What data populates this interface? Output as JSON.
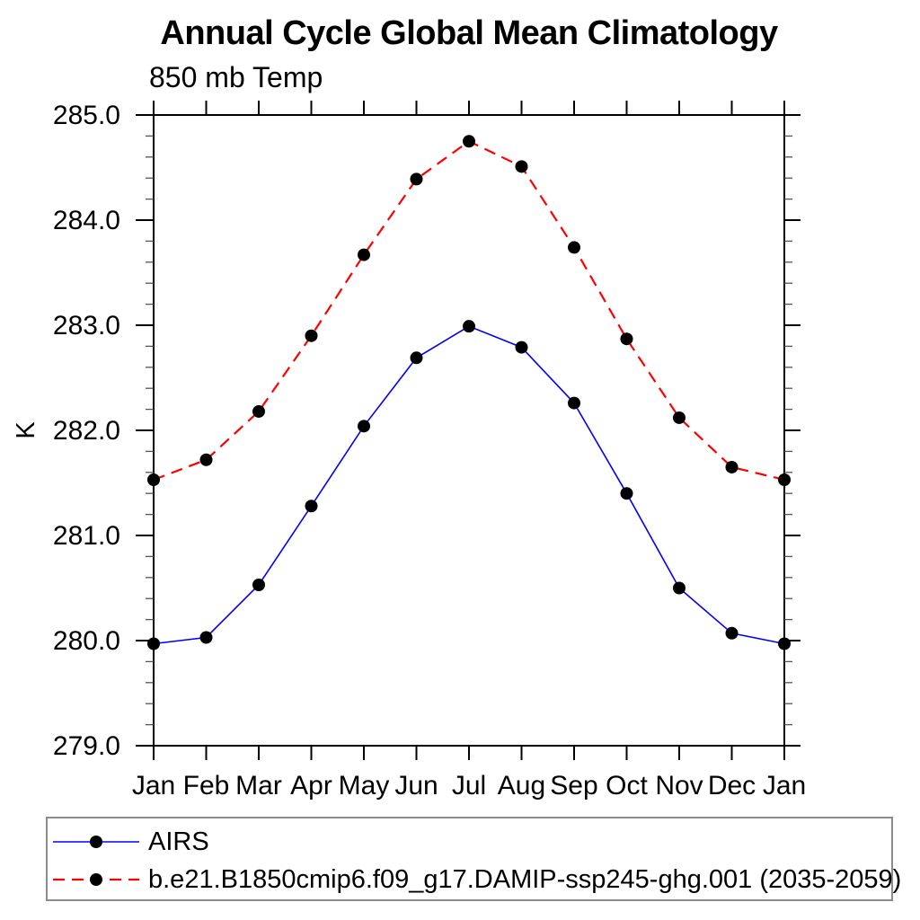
{
  "chart_data": {
    "type": "line",
    "title": "Annual Cycle Global Mean Climatology",
    "subtitle": "850 mb Temp",
    "ylabel": "K",
    "categories": [
      "Jan",
      "Feb",
      "Mar",
      "Apr",
      "May",
      "Jun",
      "Jul",
      "Aug",
      "Sep",
      "Oct",
      "Nov",
      "Dec",
      "Jan"
    ],
    "ylim": [
      279.0,
      285.0
    ],
    "ytick_major_values": [
      279.0,
      280.0,
      281.0,
      282.0,
      283.0,
      284.0,
      285.0
    ],
    "ytick_minor_step": 0.2,
    "grid": "off",
    "legend_position": "bottom",
    "marker": {
      "shape": "circle",
      "color": "#000000",
      "radius": 7
    },
    "axis_color": "#000000",
    "series": [
      {
        "name": "AIRS",
        "color": "#0000ff",
        "line_style": "solid",
        "values": [
          279.97,
          280.03,
          280.53,
          281.28,
          282.04,
          282.69,
          282.99,
          282.79,
          282.26,
          281.4,
          280.5,
          280.07,
          279.97
        ]
      },
      {
        "name": "b.e21.B1850cmip6.f09_g17.DAMIP-ssp245-ghg.001 (2035-2059)",
        "color": "#ff0000",
        "line_style": "dashed",
        "values": [
          281.53,
          281.72,
          282.18,
          282.9,
          283.67,
          284.39,
          284.75,
          284.51,
          283.74,
          282.87,
          282.12,
          281.65,
          281.53
        ]
      }
    ]
  }
}
